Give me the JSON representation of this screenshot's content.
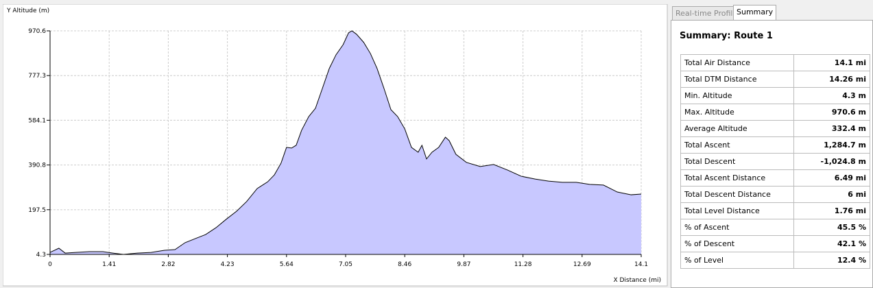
{
  "tabs": [
    "Real-time Profile",
    "Summary"
  ],
  "summary": {
    "title": "Summary: Route 1",
    "rows": [
      [
        "Total Air Distance",
        "14.1 mi"
      ],
      [
        "Total DTM Distance",
        "14.26 mi"
      ],
      [
        "Min. Altitude",
        "4.3 m"
      ],
      [
        "Max. Altitude",
        "970.6 m"
      ],
      [
        "Average Altitude",
        "332.4 m"
      ],
      [
        "Total Ascent",
        "1,284.7 m"
      ],
      [
        "Total Descent",
        "-1,024.8 m"
      ],
      [
        "Total Ascent Distance",
        "6.49 mi"
      ],
      [
        "Total Descent Distance",
        "6 mi"
      ],
      [
        "Total Level Distance",
        "1.76 mi"
      ],
      [
        "% of Ascent",
        "45.5 %"
      ],
      [
        "% of Descent",
        "42.1 %"
      ],
      [
        "% of Level",
        "12.4 %"
      ]
    ]
  },
  "chart_data": {
    "type": "area",
    "y_label": "Y Altitude (m)",
    "x_label": "X Distance (mi)",
    "color": "#c8c8ff",
    "line_color": "#000000",
    "grid": true,
    "xlim": [
      0,
      14.1
    ],
    "ylim": [
      4.3,
      970.6
    ],
    "xticks": [
      0,
      1.41,
      2.82,
      4.23,
      5.64,
      7.05,
      8.46,
      9.87,
      11.28,
      12.69,
      14.1
    ],
    "yticks": [
      4.3,
      197.5,
      390.8,
      584.1,
      777.3,
      970.6
    ],
    "x": [
      0,
      0.21,
      0.36,
      0.61,
      0.93,
      1.26,
      1.5,
      1.75,
      2.08,
      2.41,
      2.73,
      2.98,
      3.22,
      3.47,
      3.71,
      3.96,
      4.2,
      4.45,
      4.69,
      4.94,
      5.19,
      5.35,
      5.51,
      5.64,
      5.76,
      5.87,
      6.0,
      6.17,
      6.33,
      6.49,
      6.66,
      6.82,
      6.99,
      7.12,
      7.2,
      7.31,
      7.48,
      7.64,
      7.8,
      7.97,
      8.13,
      8.29,
      8.46,
      8.62,
      8.78,
      8.87,
      8.98,
      9.11,
      9.27,
      9.43,
      9.52,
      9.68,
      9.93,
      10.26,
      10.58,
      10.91,
      11.24,
      11.57,
      11.89,
      12.22,
      12.55,
      12.87,
      13.2,
      13.53,
      13.86,
      14.1
    ],
    "values": [
      13,
      31,
      10,
      13,
      16,
      16,
      10,
      4.3,
      10,
      13,
      22,
      25,
      55,
      73,
      90,
      120,
      156,
      191,
      233,
      289,
      318,
      348,
      399,
      467,
      464,
      476,
      541,
      600,
      636,
      719,
      808,
      867,
      911,
      962,
      970.6,
      956,
      921,
      873,
      808,
      719,
      630,
      600,
      547,
      467,
      446,
      476,
      417,
      446,
      467,
      511,
      496,
      437,
      402,
      384,
      393,
      369,
      342,
      330,
      321,
      316,
      316,
      307,
      304,
      274,
      262,
      265
    ]
  }
}
